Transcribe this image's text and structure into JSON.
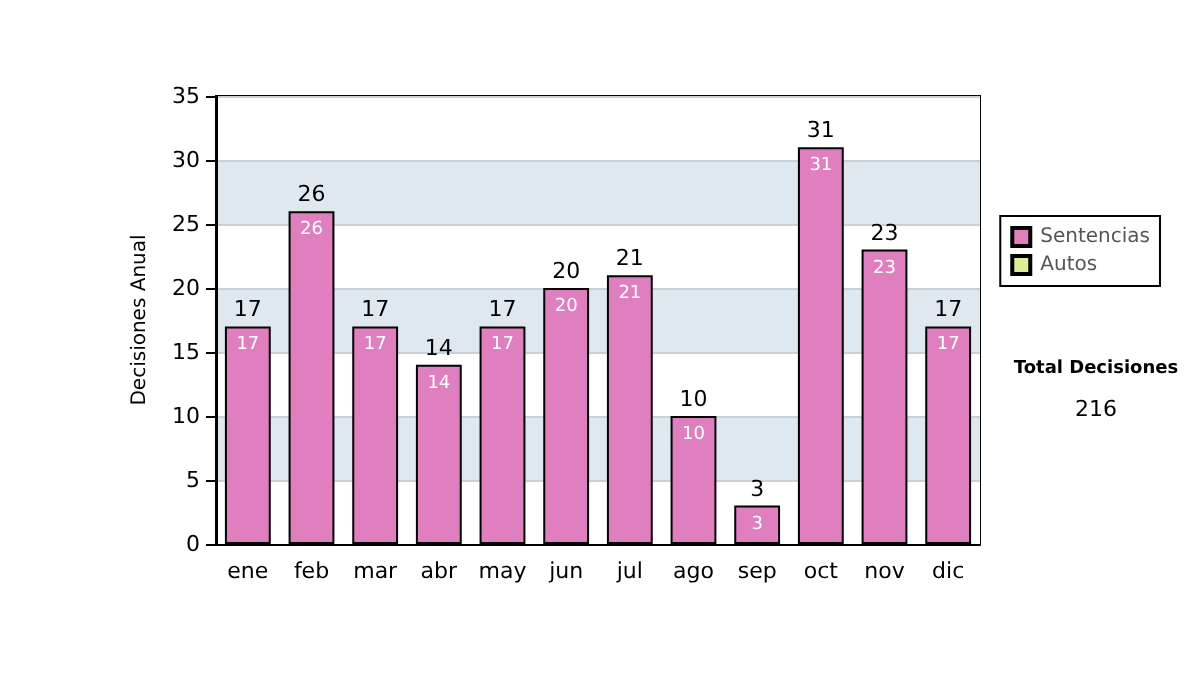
{
  "chart_data": {
    "type": "bar",
    "ylabel": "Decisiones Anual",
    "categories": [
      "ene",
      "feb",
      "mar",
      "abr",
      "may",
      "jun",
      "jul",
      "ago",
      "sep",
      "oct",
      "nov",
      "dic"
    ],
    "series": [
      {
        "name": "Sentencias",
        "color": "#e07fc0",
        "values": [
          17,
          26,
          17,
          14,
          17,
          20,
          21,
          10,
          3,
          31,
          23,
          17
        ]
      },
      {
        "name": "Autos",
        "color": "#ddee99",
        "values": [
          null,
          null,
          null,
          null,
          null,
          null,
          null,
          null,
          null,
          null,
          null,
          null
        ]
      }
    ],
    "stacked": true,
    "data_labels": true,
    "totals": [
      "17",
      "26",
      "17",
      "14",
      "17",
      "20",
      "21",
      "10",
      "3",
      "31",
      "23",
      "17"
    ],
    "ylim": [
      0,
      35
    ],
    "yticks": [
      0,
      5,
      10,
      15,
      20,
      25,
      30,
      35
    ],
    "grid": "y",
    "legend": "right",
    "annotations": [
      "Total Decisiones",
      "216"
    ]
  }
}
